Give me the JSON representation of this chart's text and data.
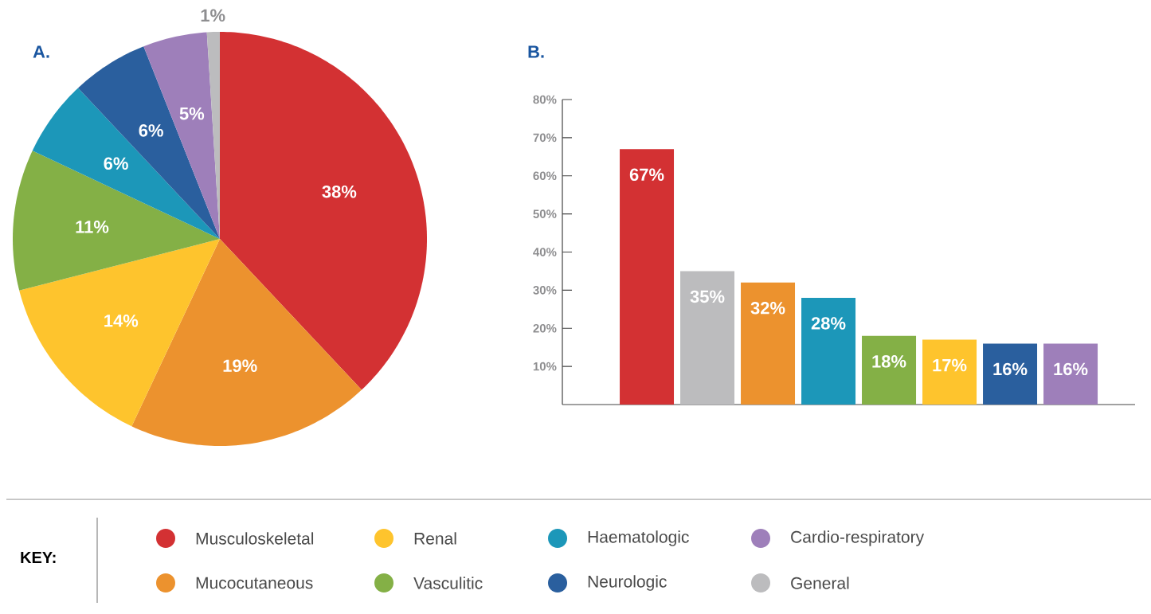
{
  "chart_data": [
    {
      "type": "pie",
      "title": "A.",
      "categories": [
        "Musculoskeletal",
        "Mucocutaneous",
        "Renal",
        "Vasculitic",
        "Haematologic",
        "Neurologic",
        "Cardio-respiratory",
        "General"
      ],
      "values": [
        38,
        19,
        14,
        11,
        6,
        6,
        5,
        1
      ],
      "colors": [
        "#d33133",
        "#ec922e",
        "#fec42d",
        "#84b046",
        "#1c97b9",
        "#2a5f9e",
        "#9e7fba",
        "#bcbcbe"
      ],
      "value_labels": [
        "38%",
        "19%",
        "14%",
        "11%",
        "6%",
        "6%",
        "5%",
        "1%"
      ],
      "legend": "bottom",
      "legend_title": "KEY:"
    },
    {
      "type": "bar",
      "title": "B.",
      "categories": [
        null,
        null,
        null,
        null,
        null,
        null,
        null,
        null
      ],
      "values": [
        67,
        35,
        32,
        28,
        18,
        17,
        16,
        16
      ],
      "colors": [
        "#d33133",
        "#bcbcbe",
        "#ec922e",
        "#1c97b9",
        "#84b046",
        "#fec42d",
        "#2a5f9e",
        "#9e7fba"
      ],
      "value_labels": [
        "67%",
        "35%",
        "32%",
        "28%",
        "18%",
        "17%",
        "16%",
        "16%"
      ],
      "ylim": [
        0,
        80
      ],
      "yticks": [
        {
          "value": 10,
          "label": "10%"
        },
        {
          "value": 20,
          "label": "20%"
        },
        {
          "value": 30,
          "label": "30%"
        },
        {
          "value": 40,
          "label": "40%"
        },
        {
          "value": 50,
          "label": "50%"
        },
        {
          "value": 60,
          "label": "60%"
        },
        {
          "value": 70,
          "label": "70%"
        },
        {
          "value": 80,
          "label": "80%"
        }
      ]
    }
  ]
}
